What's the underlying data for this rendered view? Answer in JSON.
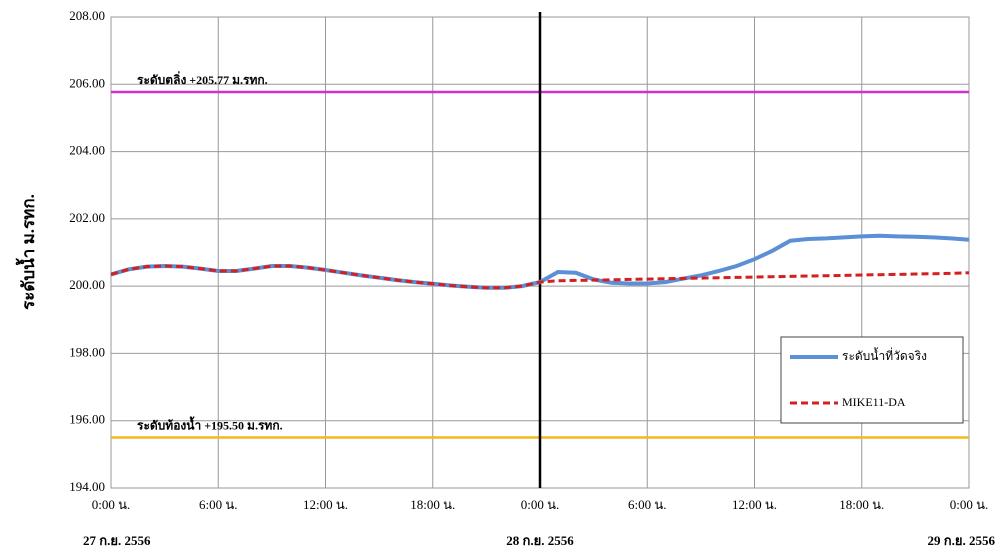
{
  "chart_data": {
    "type": "line",
    "y_axis_label": "ระดับน้ำ  ม.รทก.",
    "x": [
      0,
      1,
      2,
      3,
      4,
      5,
      6,
      7,
      8,
      9,
      10,
      11,
      12,
      13,
      14,
      15,
      16,
      17,
      18,
      19,
      20,
      21,
      22,
      23,
      24,
      25,
      26,
      27,
      28,
      29,
      30,
      31,
      32,
      33,
      34,
      35,
      36,
      37,
      38,
      39,
      40,
      41,
      42,
      43,
      44,
      45,
      46,
      47,
      48
    ],
    "series": [
      {
        "name": "ระดับน้ำที่วัดจริง",
        "color": "#5b8fd6",
        "dash": false,
        "values": [
          200.35,
          200.5,
          200.58,
          200.6,
          200.58,
          200.52,
          200.45,
          200.45,
          200.52,
          200.6,
          200.6,
          200.55,
          200.48,
          200.4,
          200.32,
          200.25,
          200.18,
          200.12,
          200.07,
          200.02,
          199.98,
          199.95,
          199.95,
          200.0,
          200.12,
          200.42,
          200.4,
          200.2,
          200.1,
          200.08,
          200.08,
          200.12,
          200.22,
          200.32,
          200.45,
          200.6,
          200.8,
          201.05,
          201.35,
          201.4,
          201.42,
          201.45,
          201.48,
          201.5,
          201.48,
          201.47,
          201.45,
          201.42,
          201.38
        ]
      },
      {
        "name": "MIKE11-DA",
        "color": "#d42020",
        "dash": true,
        "values": [
          200.35,
          200.5,
          200.58,
          200.6,
          200.58,
          200.52,
          200.45,
          200.45,
          200.52,
          200.6,
          200.6,
          200.55,
          200.48,
          200.4,
          200.32,
          200.25,
          200.18,
          200.12,
          200.07,
          200.02,
          199.98,
          199.95,
          199.95,
          200.0,
          200.12,
          200.16,
          200.17,
          200.18,
          200.19,
          200.2,
          200.21,
          200.22,
          200.23,
          200.24,
          200.25,
          200.26,
          200.27,
          200.28,
          200.29,
          200.3,
          200.31,
          200.32,
          200.33,
          200.34,
          200.35,
          200.36,
          200.37,
          200.38,
          200.4
        ]
      }
    ],
    "reference_lines": [
      {
        "value": 205.77,
        "label": "ระดับตลิ่ง +205.77 ม.รทก.",
        "color": "#cc33cc"
      },
      {
        "value": 195.5,
        "label": "ระดับท้องน้ำ +195.50 ม.รทก.",
        "color": "#f2b81c"
      }
    ],
    "vline": 24,
    "xlim": [
      0,
      48
    ],
    "xticks": [
      {
        "value": 0,
        "label": "0:00 น."
      },
      {
        "value": 6,
        "label": "6:00 น."
      },
      {
        "value": 12,
        "label": "12:00 น."
      },
      {
        "value": 18,
        "label": "18:00 น."
      },
      {
        "value": 24,
        "label": "0:00 น."
      },
      {
        "value": 30,
        "label": "6:00 น."
      },
      {
        "value": 36,
        "label": "12:00 น."
      },
      {
        "value": 42,
        "label": "18:00 น."
      },
      {
        "value": 48,
        "label": "0:00 น."
      }
    ],
    "date_labels": [
      {
        "value": 0,
        "label": "27 ก.ย. 2556"
      },
      {
        "value": 24,
        "label": "28 ก.ย. 2556"
      },
      {
        "value": 48,
        "label": "29 ก.ย. 2556"
      }
    ],
    "ylim": [
      194,
      208
    ],
    "yticks": [
      {
        "value": 194,
        "label": "194.00"
      },
      {
        "value": 196,
        "label": "196.00"
      },
      {
        "value": 198,
        "label": "198.00"
      },
      {
        "value": 200,
        "label": "200.00"
      },
      {
        "value": 202,
        "label": "202.00"
      },
      {
        "value": 204,
        "label": "204.00"
      },
      {
        "value": 206,
        "label": "206.00"
      },
      {
        "value": 208,
        "label": "208.00"
      }
    ],
    "grid": true
  }
}
